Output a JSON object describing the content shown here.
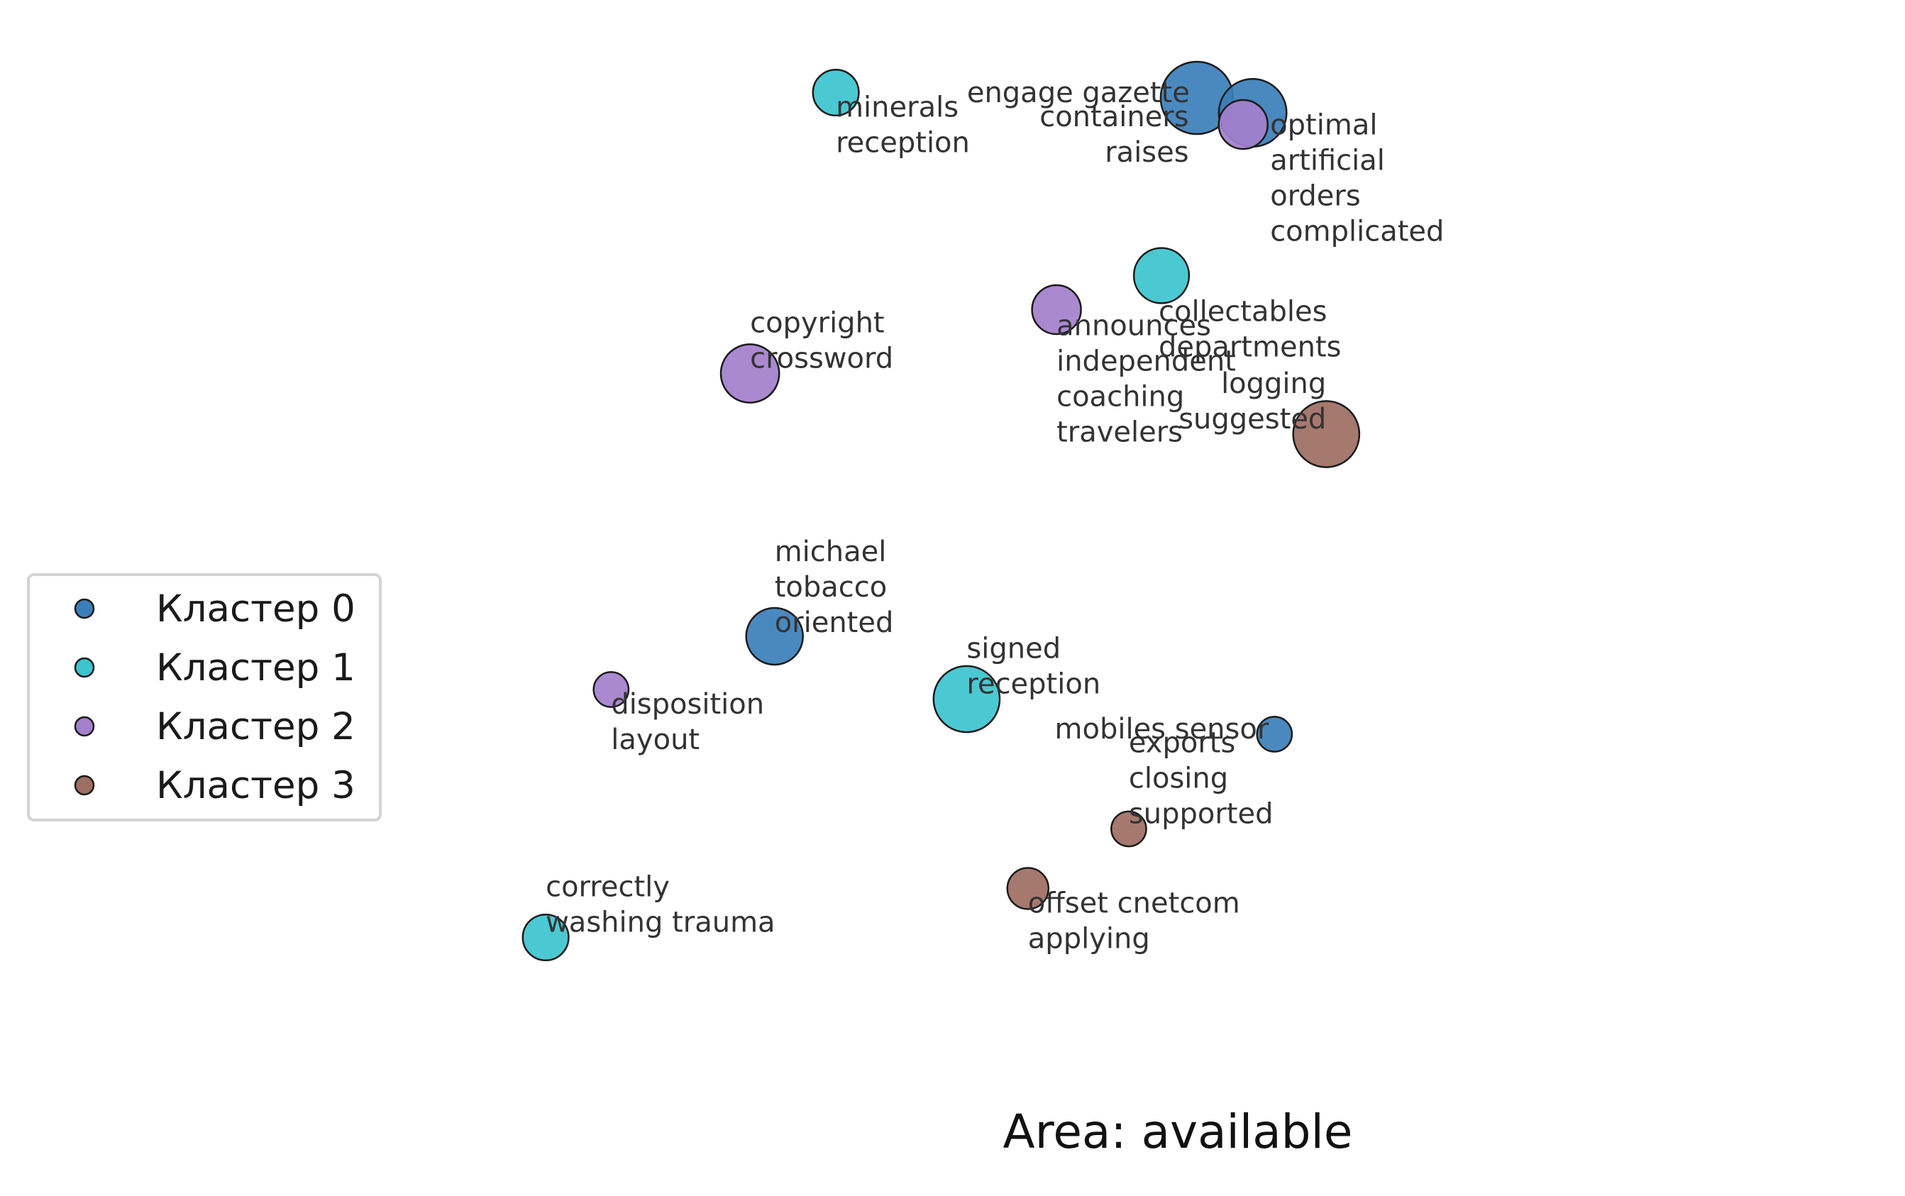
{
  "chart_data": {
    "type": "scatter",
    "title": "",
    "xlabel": "Area: available",
    "ylabel": "",
    "xlim": [
      0,
      100
    ],
    "ylim": [
      0,
      100
    ],
    "grid": false,
    "axes_visible": false,
    "legend_position": "center-left",
    "series": [
      {
        "name": "Кластер 0",
        "color": "#3b7fba",
        "points": [
          {
            "x": 51.4,
            "y": 94.8,
            "size": 3.0,
            "label": "engage gazette"
          },
          {
            "x": 55.5,
            "y": 93.4,
            "size": 2.7,
            "label": "containers\nraises"
          },
          {
            "x": 20.4,
            "y": 44.2,
            "size": 2.0,
            "label": "michael\ntobacco\noriented"
          },
          {
            "x": 57.1,
            "y": 35.0,
            "size": 0.6,
            "label": "mobiles sensor"
          }
        ]
      },
      {
        "name": "Кластер 1",
        "color": "#3cc4cf",
        "points": [
          {
            "x": 24.9,
            "y": 95.3,
            "size": 1.3,
            "label": "minerals\nreception"
          },
          {
            "x": 48.8,
            "y": 78.1,
            "size": 1.9,
            "label": "collectables\ndepartments"
          },
          {
            "x": 34.5,
            "y": 38.3,
            "size": 2.6,
            "label": "signed\nreception"
          },
          {
            "x": 3.6,
            "y": 15.9,
            "size": 1.3,
            "label": "correctly\nwashing trauma"
          }
        ]
      },
      {
        "name": "Кластер 2",
        "color": "#a37fcc",
        "points": [
          {
            "x": 54.8,
            "y": 92.3,
            "size": 1.5,
            "label": "optimal\nartificial\norders\ncomplicated"
          },
          {
            "x": 41.1,
            "y": 74.9,
            "size": 1.5,
            "label": "announces\nindependent\ncoaching\ntravelers"
          },
          {
            "x": 18.6,
            "y": 68.9,
            "size": 2.1,
            "label": "copyright\ncrossword"
          },
          {
            "x": 8.4,
            "y": 39.2,
            "size": 0.6,
            "label": "disposition\nlayout"
          }
        ]
      },
      {
        "name": "Кластер 3",
        "color": "#9e6e63",
        "points": [
          {
            "x": 60.9,
            "y": 63.2,
            "size": 2.6,
            "label": "logging\nsuggested"
          },
          {
            "x": 46.4,
            "y": 26.1,
            "size": 0.6,
            "label": "exports\nclosing\nsupported"
          },
          {
            "x": 39.0,
            "y": 20.5,
            "size": 1.0,
            "label": "offset cnetcom\napplying"
          }
        ]
      }
    ]
  }
}
